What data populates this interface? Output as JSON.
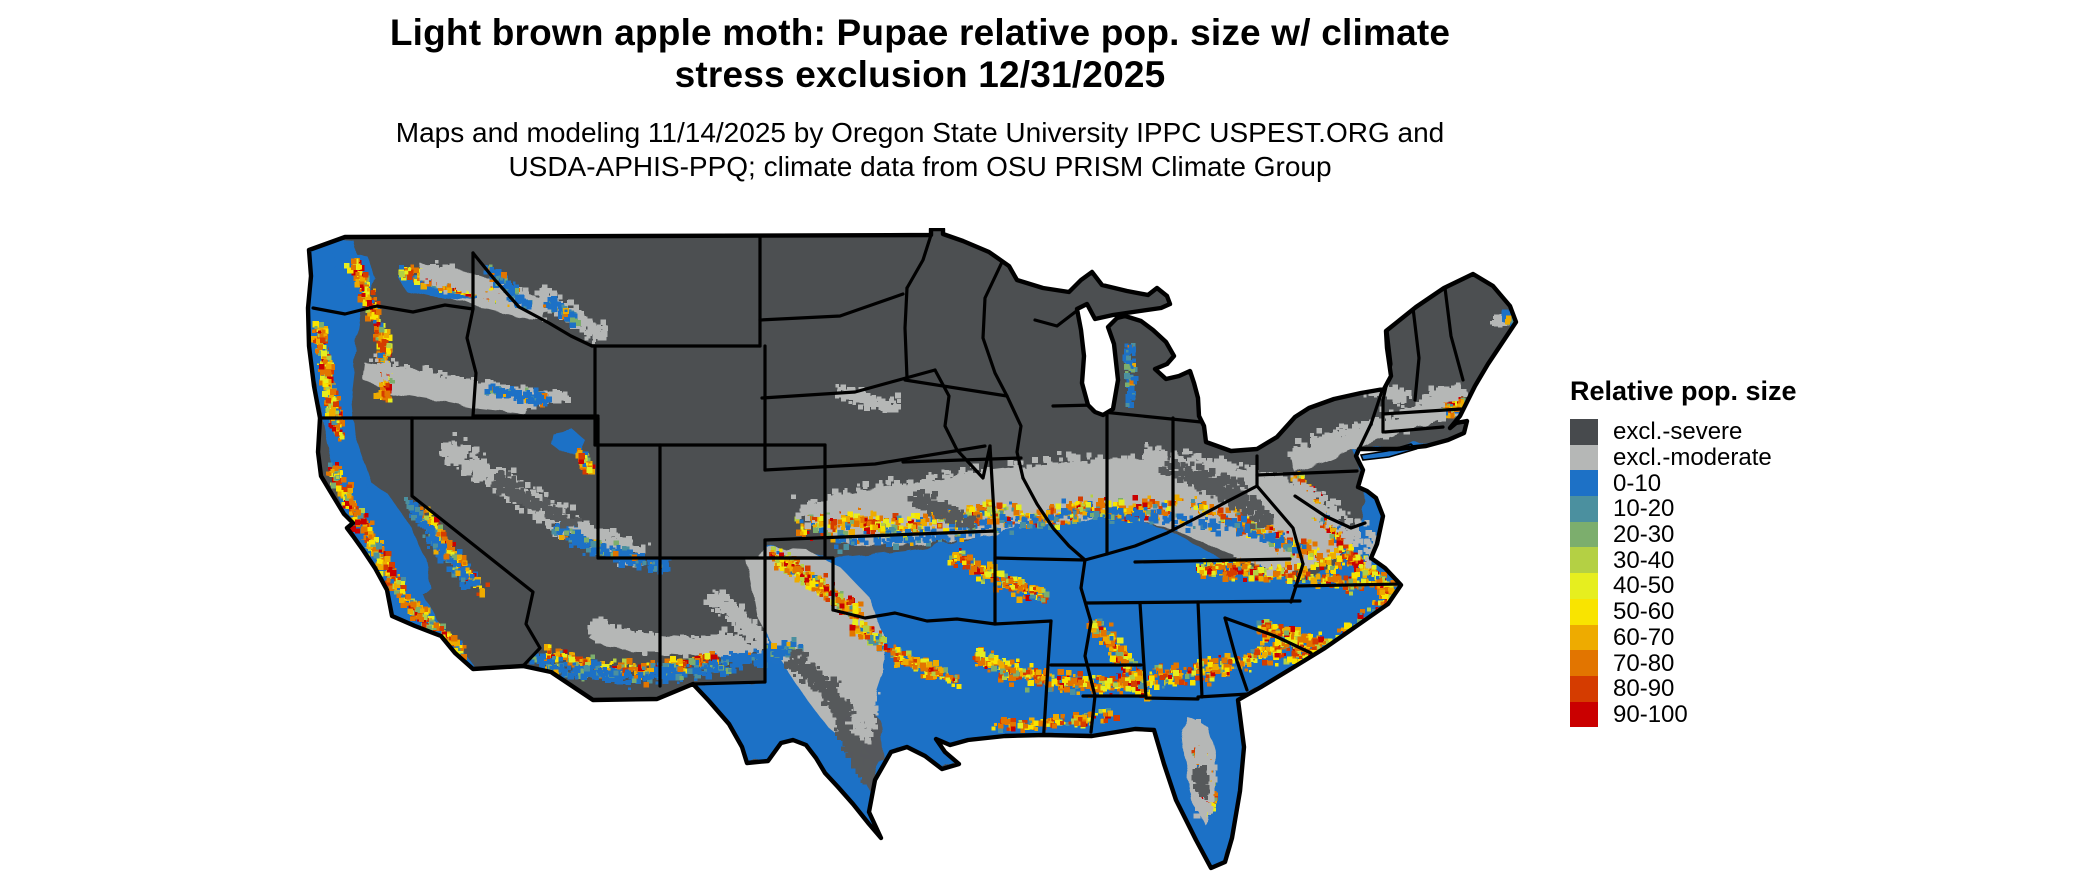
{
  "title": {
    "line1": "Light brown apple moth: Pupae relative pop. size w/ climate",
    "line2": "stress exclusion 12/31/2025"
  },
  "subtitle": {
    "line1": "Maps and modeling 11/14/2025 by Oregon State University IPPC USPEST.ORG and",
    "line2": "USDA-APHIS-PPQ; climate data from OSU PRISM Climate Group"
  },
  "legend": {
    "title": "Relative pop. size",
    "items": [
      {
        "label": "excl.-severe",
        "color": "#474a4d"
      },
      {
        "label": "excl.-moderate",
        "color": "#b5b7b6"
      },
      {
        "label": "0-10",
        "color": "#1d71c6"
      },
      {
        "label": "10-20",
        "color": "#4b909f"
      },
      {
        "label": "20-30",
        "color": "#7cae6d"
      },
      {
        "label": "30-40",
        "color": "#b4d044"
      },
      {
        "label": "40-50",
        "color": "#e6ee1f"
      },
      {
        "label": "50-60",
        "color": "#f9e400"
      },
      {
        "label": "60-70",
        "color": "#eeab00"
      },
      {
        "label": "70-80",
        "color": "#e27500"
      },
      {
        "label": "80-90",
        "color": "#d53c00"
      },
      {
        "label": "90-100",
        "color": "#ca0000"
      }
    ]
  },
  "map": {
    "land_color": "#4c4f51",
    "moderate_color": "#b5b7b6",
    "low_pop_color": "#1d71c6",
    "medium_gray_patch_color": "#56595b",
    "water_color": "#ffffff",
    "border_color": "#000000"
  }
}
